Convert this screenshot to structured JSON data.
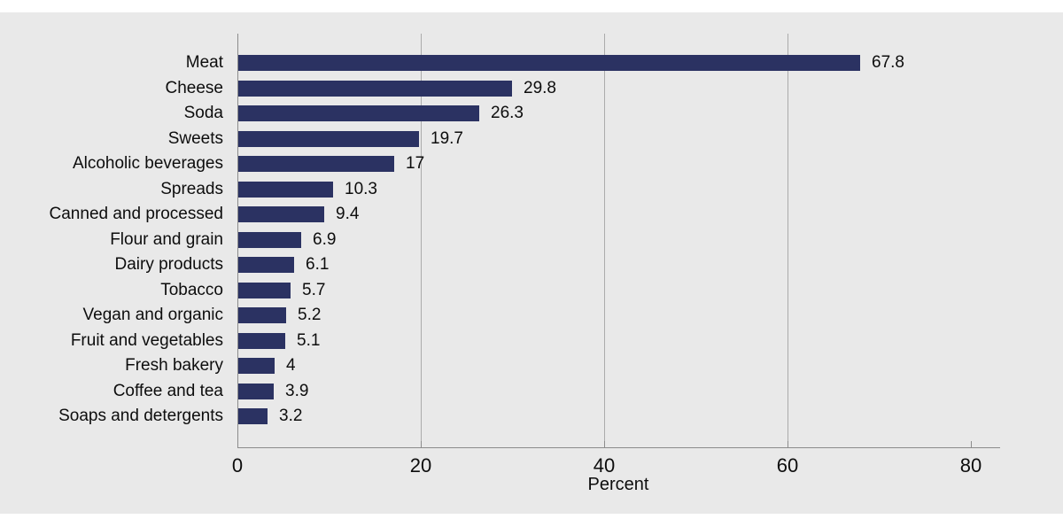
{
  "page": {
    "background_color": "#ffffff",
    "canvas_color": "#e9e9e9"
  },
  "chart_data": {
    "type": "bar",
    "orientation": "horizontal",
    "title": "",
    "xlabel": "Percent",
    "ylabel": "",
    "categories": [
      "Meat",
      "Cheese",
      "Soda",
      "Sweets",
      "Alcoholic beverages",
      "Spreads",
      "Canned and processed",
      "Flour and grain",
      "Dairy products",
      "Tobacco",
      "Vegan and organic",
      "Fruit and vegetables",
      "Fresh bakery",
      "Coffee and tea",
      "Soaps and detergents"
    ],
    "values": [
      67.8,
      29.8,
      26.3,
      19.7,
      17,
      10.3,
      9.4,
      6.9,
      6.1,
      5.7,
      5.2,
      5.1,
      4,
      3.9,
      3.2
    ],
    "value_labels": [
      "67.8",
      "29.8",
      "26.3",
      "19.7",
      "17",
      "10.3",
      "9.4",
      "6.9",
      "6.1",
      "5.7",
      "5.2",
      "5.1",
      "4",
      "3.9",
      "3.2"
    ],
    "xlim": [
      0,
      83
    ],
    "xticks": [
      0,
      20,
      40,
      60,
      80
    ],
    "grid_ticks": [
      20,
      40,
      60
    ],
    "grid": "vertical",
    "legend_position": "none",
    "bar_color": "#2b3262",
    "axis_color": "#8c8c8c",
    "grid_color": "#ababab",
    "text_color": "#0d0d0d"
  }
}
